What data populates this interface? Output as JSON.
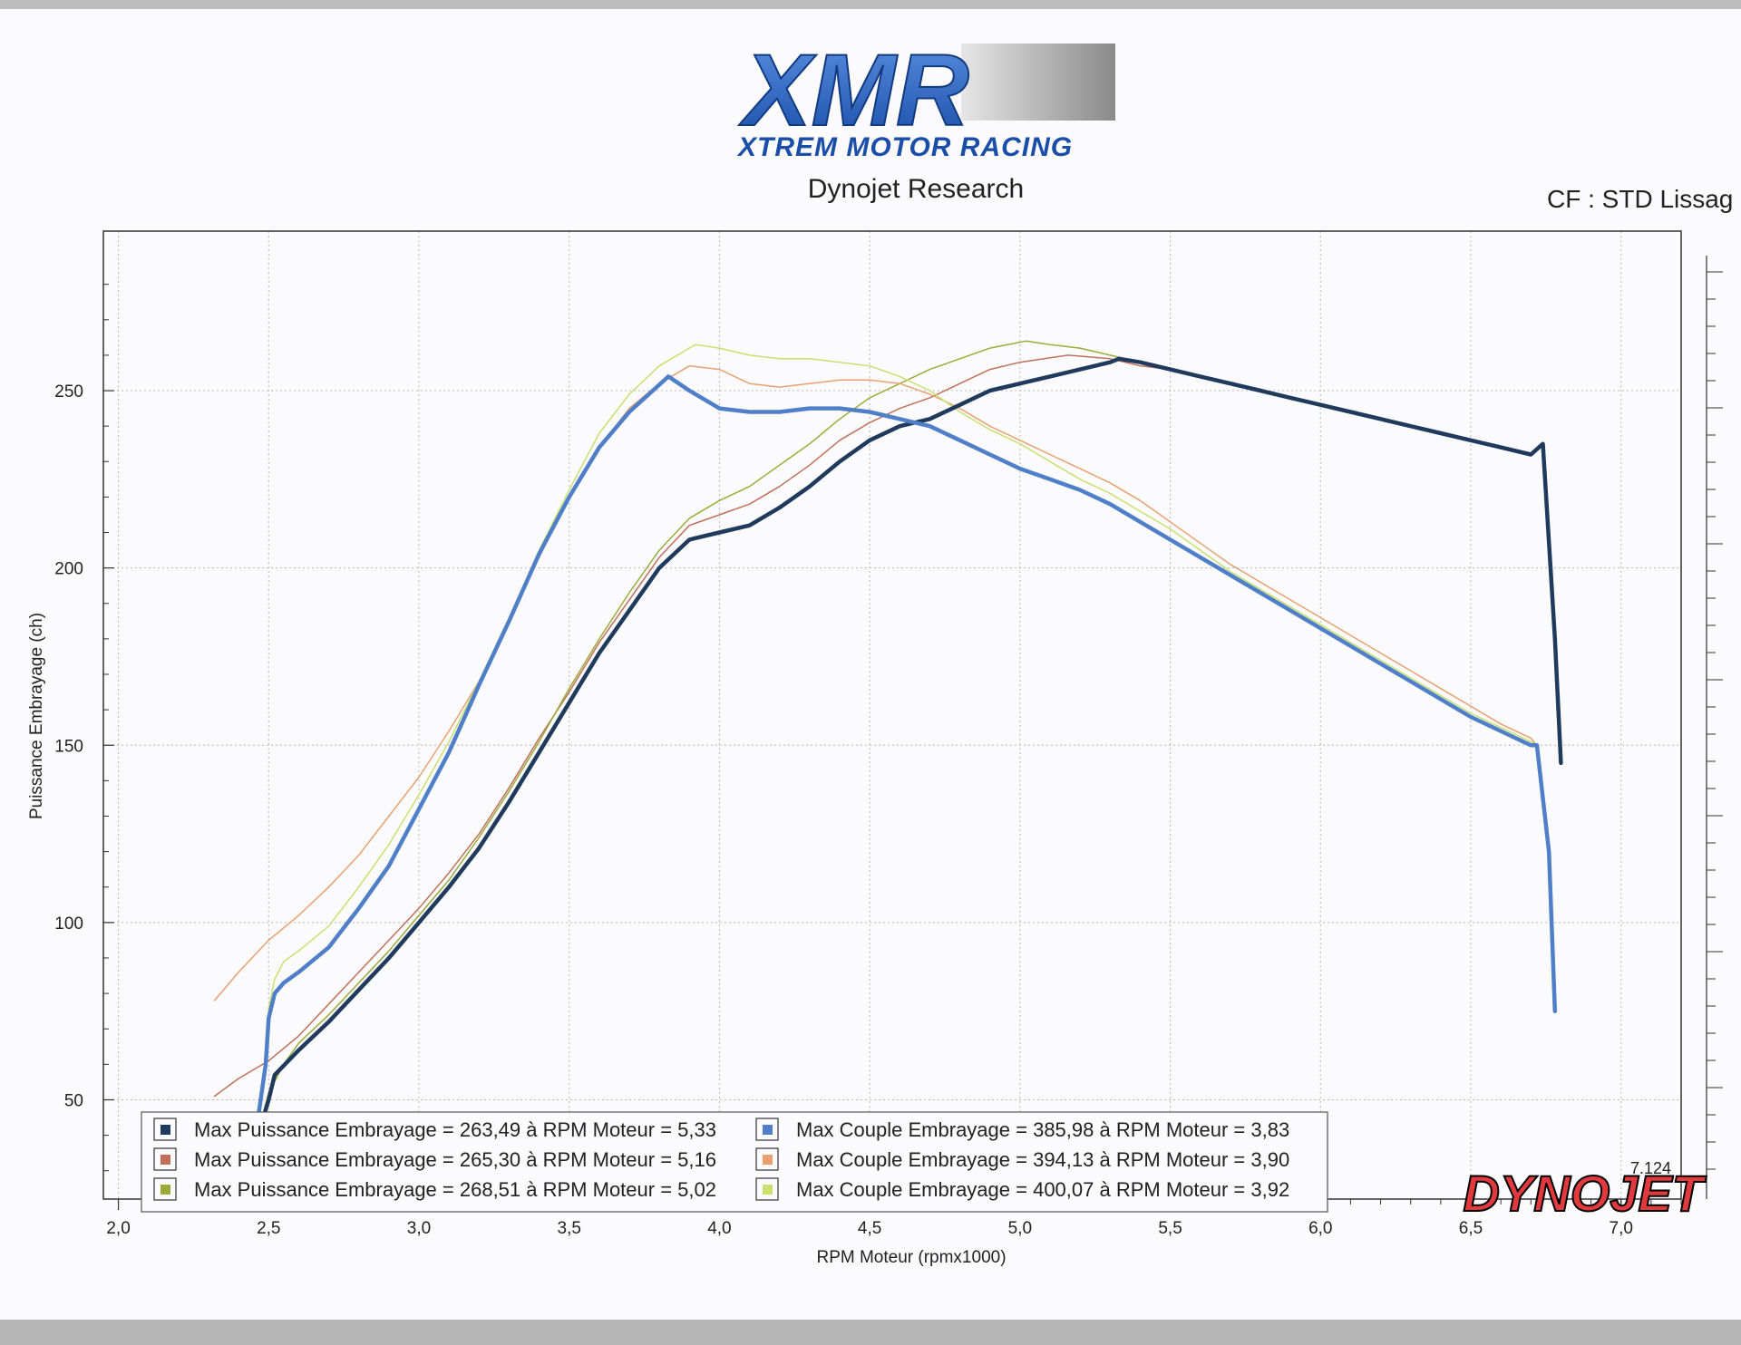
{
  "header": {
    "logo_text": "XMR",
    "logo_tagline": "XTREM MOTOR RACING",
    "subtitle": "Dynojet Research",
    "cf_label": "CF : STD Lissag"
  },
  "watermark": {
    "brand": "DYNOJET",
    "version": "7.124"
  },
  "colors": {
    "dark_navy": "#1f3a5c",
    "steel_blue": "#4f7fc8",
    "rust": "#c0705a",
    "light_orange": "#e8a070",
    "olive": "#9aab3a",
    "lime": "#c8e070"
  },
  "chart_data": {
    "type": "line",
    "xlabel": "RPM Moteur (rpmx1000)",
    "ylabel": "Puissance Embrayage (ch)",
    "xlim": [
      1.95,
      7.2
    ],
    "ylim": [
      22,
      295
    ],
    "xticks": [
      "2,0",
      "2,5",
      "3,0",
      "3,5",
      "4,0",
      "4,5",
      "5,0",
      "5,5",
      "6,0",
      "6,5",
      "7,0"
    ],
    "yticks": [
      "50",
      "100",
      "150",
      "200",
      "250"
    ],
    "grid": true,
    "series": [
      {
        "name": "Max Puissance Embrayage = 263,49 à RPM Moteur = 5,33",
        "color": "#1f3a5c",
        "width": 4.5,
        "x": [
          2.45,
          2.5,
          2.52,
          2.6,
          2.7,
          2.8,
          2.9,
          3.0,
          3.1,
          3.2,
          3.3,
          3.4,
          3.5,
          3.6,
          3.7,
          3.8,
          3.9,
          4.0,
          4.1,
          4.2,
          4.3,
          4.4,
          4.5,
          4.6,
          4.7,
          4.8,
          4.9,
          5.0,
          5.1,
          5.2,
          5.3,
          5.33,
          5.4,
          5.5,
          5.6,
          5.7,
          5.8,
          5.9,
          6.0,
          6.1,
          6.2,
          6.3,
          6.4,
          6.5,
          6.6,
          6.7,
          6.74,
          6.78,
          6.8
        ],
        "y": [
          36,
          50,
          57,
          64,
          72,
          81,
          90,
          100,
          110,
          121,
          134,
          148,
          162,
          176,
          188,
          200,
          208,
          210,
          212,
          217,
          223,
          230,
          236,
          240,
          242,
          246,
          250,
          252,
          254,
          256,
          258,
          259,
          258,
          256,
          254,
          252,
          250,
          248,
          246,
          244,
          242,
          240,
          238,
          236,
          234,
          232,
          235,
          180,
          145
        ]
      },
      {
        "name": "Max Puissance Embrayage = 265,30 à RPM Moteur = 5,16",
        "color": "#c0705a",
        "width": 1.5,
        "x": [
          2.32,
          2.4,
          2.5,
          2.6,
          2.7,
          2.8,
          2.9,
          3.0,
          3.1,
          3.2,
          3.3,
          3.4,
          3.5,
          3.6,
          3.7,
          3.8,
          3.9,
          4.0,
          4.1,
          4.2,
          4.3,
          4.4,
          4.5,
          4.6,
          4.7,
          4.8,
          4.9,
          5.0,
          5.16,
          5.3,
          5.4,
          5.5,
          5.6,
          5.7,
          5.8,
          5.9,
          6.0,
          6.1,
          6.2,
          6.3,
          6.4,
          6.5,
          6.6,
          6.7,
          6.74,
          6.78,
          6.8
        ],
        "y": [
          51,
          56,
          61,
          68,
          77,
          86,
          95,
          104,
          114,
          125,
          138,
          152,
          165,
          179,
          191,
          203,
          212,
          215,
          218,
          223,
          229,
          236,
          241,
          245,
          248,
          252,
          256,
          258,
          260,
          259,
          257,
          256,
          254,
          252,
          250,
          248,
          246,
          244,
          242,
          240,
          238,
          236,
          234,
          232,
          235,
          180,
          145
        ]
      },
      {
        "name": "Max Puissance Embrayage = 268,51 à RPM Moteur = 5,02",
        "color": "#9aab3a",
        "width": 1.5,
        "x": [
          2.45,
          2.5,
          2.55,
          2.6,
          2.7,
          2.8,
          2.9,
          3.0,
          3.1,
          3.2,
          3.3,
          3.4,
          3.5,
          3.6,
          3.7,
          3.8,
          3.9,
          4.0,
          4.1,
          4.2,
          4.3,
          4.4,
          4.5,
          4.6,
          4.7,
          4.8,
          4.9,
          5.02,
          5.1,
          5.2,
          5.3,
          5.4,
          5.5,
          5.6,
          5.7,
          5.8,
          5.9,
          6.0,
          6.1,
          6.2,
          6.3,
          6.4,
          6.5,
          6.6,
          6.7,
          6.74,
          6.78,
          6.8
        ],
        "y": [
          36,
          52,
          60,
          66,
          74,
          83,
          92,
          102,
          112,
          124,
          137,
          151,
          166,
          180,
          193,
          205,
          214,
          219,
          223,
          229,
          235,
          242,
          248,
          252,
          256,
          259,
          262,
          264,
          263,
          262,
          260,
          258,
          256,
          254,
          252,
          250,
          248,
          246,
          244,
          242,
          240,
          238,
          236,
          234,
          232,
          235,
          180,
          146
        ]
      },
      {
        "name": "Max Couple Embrayage = 385,98 à RPM Moteur = 3,83",
        "color": "#4f7fc8",
        "width": 4.5,
        "x": [
          2.45,
          2.49,
          2.5,
          2.52,
          2.55,
          2.6,
          2.7,
          2.8,
          2.9,
          3.0,
          3.1,
          3.2,
          3.3,
          3.4,
          3.5,
          3.6,
          3.7,
          3.83,
          3.9,
          4.0,
          4.1,
          4.2,
          4.3,
          4.4,
          4.5,
          4.6,
          4.7,
          4.8,
          4.9,
          5.0,
          5.1,
          5.2,
          5.3,
          5.4,
          5.5,
          5.6,
          5.7,
          5.8,
          5.9,
          6.0,
          6.1,
          6.2,
          6.3,
          6.4,
          6.5,
          6.6,
          6.7,
          6.72,
          6.76,
          6.78
        ],
        "y": [
          36,
          60,
          73,
          80,
          83,
          86,
          93,
          104,
          116,
          132,
          148,
          167,
          185,
          204,
          220,
          234,
          244,
          254,
          250,
          245,
          244,
          244,
          245,
          245,
          244,
          242,
          240,
          236,
          232,
          228,
          225,
          222,
          218,
          213,
          208,
          203,
          198,
          193,
          188,
          183,
          178,
          173,
          168,
          163,
          158,
          154,
          150,
          150,
          120,
          75
        ]
      },
      {
        "name": "Max Couple Embrayage = 394,13 à RPM Moteur = 3,90",
        "color": "#e8a070",
        "width": 1.5,
        "x": [
          2.32,
          2.4,
          2.5,
          2.6,
          2.7,
          2.8,
          2.9,
          3.0,
          3.1,
          3.2,
          3.3,
          3.4,
          3.5,
          3.6,
          3.7,
          3.8,
          3.9,
          4.0,
          4.1,
          4.2,
          4.3,
          4.4,
          4.5,
          4.6,
          4.7,
          4.8,
          4.9,
          5.0,
          5.1,
          5.2,
          5.3,
          5.4,
          5.5,
          5.6,
          5.7,
          5.8,
          5.9,
          6.0,
          6.1,
          6.2,
          6.3,
          6.4,
          6.5,
          6.6,
          6.7,
          6.72,
          6.76,
          6.78
        ],
        "y": [
          78,
          86,
          95,
          102,
          110,
          119,
          130,
          141,
          154,
          168,
          185,
          203,
          220,
          234,
          245,
          252,
          257,
          256,
          252,
          251,
          252,
          253,
          253,
          252,
          249,
          245,
          240,
          236,
          232,
          228,
          224,
          219,
          213,
          207,
          201,
          196,
          191,
          186,
          181,
          176,
          171,
          166,
          161,
          156,
          152,
          150,
          120,
          75
        ]
      },
      {
        "name": "Max Couple Embrayage = 400,07 à RPM Moteur = 3,92",
        "color": "#c8e070",
        "width": 1.5,
        "x": [
          2.45,
          2.49,
          2.5,
          2.52,
          2.55,
          2.6,
          2.7,
          2.8,
          2.9,
          3.0,
          3.1,
          3.2,
          3.3,
          3.4,
          3.5,
          3.6,
          3.7,
          3.8,
          3.92,
          4.0,
          4.1,
          4.2,
          4.3,
          4.4,
          4.5,
          4.6,
          4.7,
          4.8,
          4.9,
          5.0,
          5.1,
          5.2,
          5.3,
          5.4,
          5.5,
          5.6,
          5.7,
          5.8,
          5.9,
          6.0,
          6.1,
          6.2,
          6.3,
          6.4,
          6.5,
          6.6,
          6.7,
          6.72,
          6.76,
          6.78
        ],
        "y": [
          36,
          62,
          76,
          84,
          89,
          92,
          99,
          110,
          122,
          136,
          151,
          168,
          186,
          205,
          222,
          238,
          249,
          257,
          263,
          262,
          260,
          259,
          259,
          258,
          257,
          254,
          250,
          244,
          239,
          235,
          230,
          225,
          221,
          216,
          211,
          205,
          199,
          194,
          189,
          184,
          179,
          174,
          169,
          164,
          159,
          155,
          151,
          150,
          120,
          75
        ]
      }
    ]
  }
}
